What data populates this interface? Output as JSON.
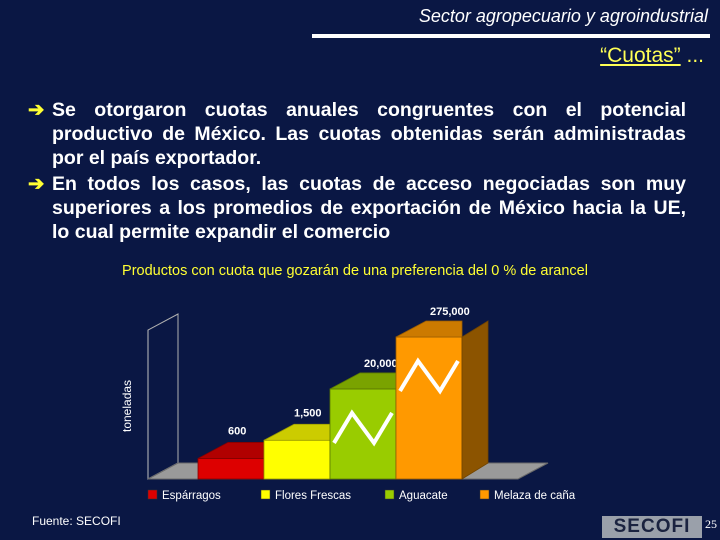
{
  "header": {
    "title": "Sector agropecuario y agroindustrial",
    "subtitle": "“Cuotas”",
    "subtitle_suffix": " ..."
  },
  "bullets": [
    "Se otorgaron cuotas anuales congruentes con el potencial productivo de México. Las cuotas obtenidas serán administradas por el país exportador.",
    "En todos los casos, las cuotas de acceso negociadas son muy superiores a los promedios de exportación de México hacia la UE, lo cual permite expandir el comercio"
  ],
  "footer": {
    "source": "Fuente: SECOFI",
    "logo": "SECOFI",
    "page": "25"
  },
  "colors": {
    "background": "#0a1744",
    "accent": "#ffff33"
  },
  "chart_data": {
    "type": "bar",
    "title": "Productos con cuota que gozarán de una preferencia del 0 % de arancel",
    "ylabel": "toneladas",
    "categories": [
      "Espárragos",
      "Flores Frescas",
      "Aguacate",
      "Melaza de caña"
    ],
    "values": [
      600,
      1500,
      20000,
      275000
    ],
    "value_labels": [
      "600",
      "1,500",
      "20,000",
      "275,000"
    ],
    "colors": [
      "#dd0000",
      "#ffff00",
      "#99cc00",
      "#ff9900"
    ],
    "scale": "non-linear",
    "legend": "bottom"
  }
}
